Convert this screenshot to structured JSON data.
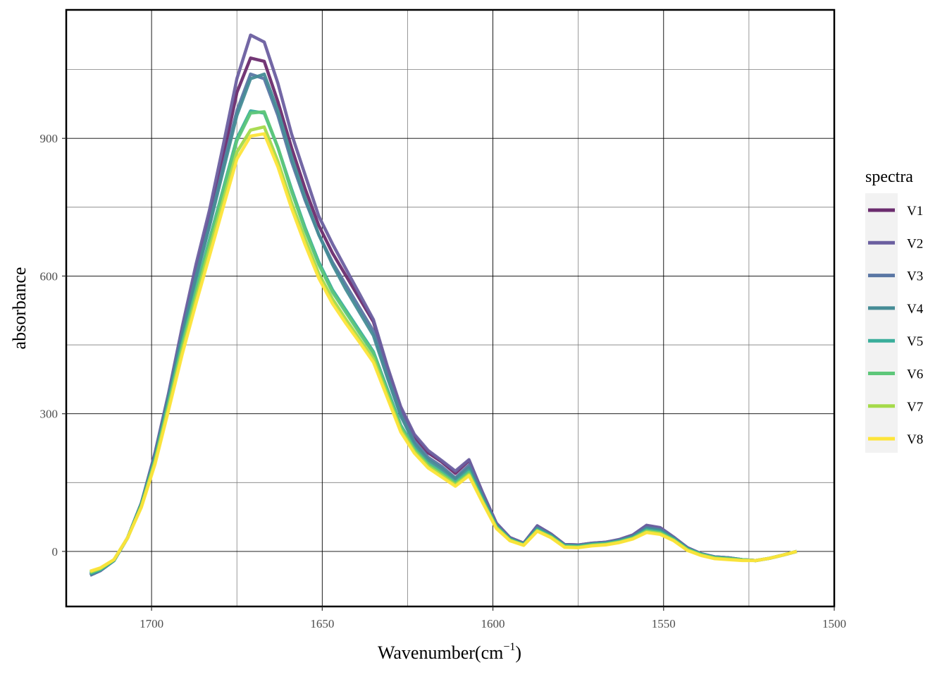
{
  "chart_data": {
    "type": "line",
    "xlabel": "Wavenumber",
    "xlabel_unit": "cm",
    "xlabel_unit_exp": "−1",
    "ylabel": "absorbance",
    "x_reversed": true,
    "xlim": [
      1725,
      1500
    ],
    "ylim": [
      -120,
      1180
    ],
    "x_ticks": [
      1700,
      1650,
      1600,
      1550,
      1500
    ],
    "y_ticks": [
      0,
      300,
      600,
      900
    ],
    "grid": true,
    "legend": {
      "title": "spectra",
      "position": "right"
    },
    "x": [
      1718,
      1715,
      1711,
      1707,
      1703,
      1699,
      1695,
      1691,
      1687,
      1683,
      1679,
      1675,
      1671,
      1667,
      1663,
      1659,
      1655,
      1651,
      1647,
      1643,
      1639,
      1635,
      1631,
      1627,
      1623,
      1619,
      1615,
      1611,
      1607,
      1603,
      1599,
      1595,
      1591,
      1587,
      1583,
      1579,
      1575,
      1571,
      1567,
      1563,
      1559,
      1555,
      1551,
      1547,
      1543,
      1539,
      1535,
      1531,
      1527,
      1523,
      1519,
      1515,
      1511
    ],
    "series": [
      {
        "name": "V1",
        "color": "#6B2C6E",
        "values": [
          -52,
          -42,
          -20,
          30,
          105,
          210,
          340,
          480,
          610,
          730,
          860,
          1000,
          1075,
          1068,
          980,
          880,
          790,
          710,
          650,
          600,
          550,
          500,
          400,
          310,
          250,
          215,
          195,
          170,
          198,
          125,
          60,
          30,
          18,
          55,
          38,
          15,
          14,
          18,
          20,
          25,
          35,
          55,
          50,
          30,
          8,
          -5,
          -12,
          -14,
          -18,
          -20,
          -15,
          -8,
          0
        ]
      },
      {
        "name": "V2",
        "color": "#6B5FA0",
        "values": [
          -52,
          -42,
          -20,
          30,
          105,
          215,
          345,
          490,
          625,
          745,
          885,
          1030,
          1125,
          1110,
          1020,
          910,
          820,
          730,
          670,
          615,
          560,
          505,
          405,
          315,
          255,
          220,
          198,
          175,
          200,
          128,
          62,
          30,
          18,
          56,
          38,
          15,
          14,
          18,
          20,
          26,
          36,
          57,
          52,
          31,
          8,
          -5,
          -12,
          -14,
          -18,
          -20,
          -15,
          -8,
          0
        ]
      },
      {
        "name": "V3",
        "color": "#5A77A4",
        "values": [
          -52,
          -42,
          -20,
          30,
          105,
          210,
          340,
          475,
          600,
          715,
          840,
          960,
          1040,
          1030,
          950,
          850,
          765,
          690,
          630,
          580,
          530,
          480,
          385,
          300,
          240,
          205,
          185,
          160,
          188,
          120,
          58,
          28,
          17,
          52,
          36,
          14,
          13,
          17,
          19,
          24,
          33,
          52,
          48,
          29,
          7,
          -5,
          -12,
          -14,
          -18,
          -20,
          -15,
          -8,
          0
        ]
      },
      {
        "name": "V4",
        "color": "#468C96",
        "values": [
          -50,
          -40,
          -20,
          30,
          105,
          205,
          335,
          470,
          595,
          710,
          830,
          950,
          1030,
          1040,
          960,
          860,
          770,
          690,
          625,
          570,
          520,
          470,
          380,
          295,
          235,
          200,
          180,
          158,
          182,
          118,
          56,
          27,
          16,
          50,
          35,
          13,
          12,
          16,
          18,
          23,
          32,
          50,
          46,
          28,
          6,
          -6,
          -13,
          -15,
          -18,
          -20,
          -15,
          -8,
          0
        ]
      },
      {
        "name": "V5",
        "color": "#3AAE9B",
        "values": [
          -48,
          -40,
          -20,
          30,
          100,
          200,
          325,
          455,
          570,
          680,
          790,
          900,
          960,
          955,
          880,
          790,
          705,
          630,
          570,
          525,
          480,
          435,
          355,
          275,
          225,
          192,
          172,
          150,
          175,
          112,
          54,
          26,
          15,
          48,
          33,
          12,
          11,
          15,
          17,
          22,
          30,
          47,
          43,
          26,
          5,
          -6,
          -13,
          -15,
          -18,
          -20,
          -15,
          -8,
          0
        ]
      },
      {
        "name": "V6",
        "color": "#5EC77A",
        "values": [
          -46,
          -38,
          -18,
          30,
          100,
          198,
          322,
          450,
          565,
          675,
          785,
          895,
          955,
          958,
          880,
          785,
          700,
          625,
          565,
          520,
          475,
          432,
          350,
          272,
          222,
          190,
          170,
          148,
          172,
          110,
          53,
          25,
          14,
          46,
          32,
          11,
          10,
          14,
          16,
          21,
          29,
          45,
          41,
          25,
          4,
          -7,
          -14,
          -16,
          -19,
          -20,
          -15,
          -8,
          0
        ]
      },
      {
        "name": "V7",
        "color": "#A5DA4A",
        "values": [
          -45,
          -37,
          -18,
          30,
          98,
          195,
          315,
          440,
          552,
          660,
          765,
          870,
          918,
          925,
          850,
          760,
          680,
          605,
          550,
          505,
          462,
          420,
          342,
          265,
          218,
          186,
          166,
          145,
          168,
          108,
          52,
          24,
          14,
          45,
          31,
          10,
          9,
          13,
          15,
          20,
          28,
          43,
          39,
          24,
          3,
          -8,
          -15,
          -17,
          -19,
          -20,
          -15,
          -8,
          0
        ]
      },
      {
        "name": "V8",
        "color": "#FDE43A",
        "values": [
          -43,
          -36,
          -18,
          30,
          96,
          190,
          308,
          430,
          540,
          645,
          750,
          855,
          905,
          910,
          838,
          748,
          668,
          595,
          540,
          496,
          455,
          412,
          336,
          260,
          214,
          182,
          162,
          142,
          165,
          106,
          50,
          23,
          13,
          44,
          30,
          9,
          8,
          12,
          14,
          19,
          27,
          41,
          37,
          23,
          2,
          -9,
          -16,
          -18,
          -20,
          -20,
          -15,
          -8,
          0
        ]
      }
    ]
  }
}
